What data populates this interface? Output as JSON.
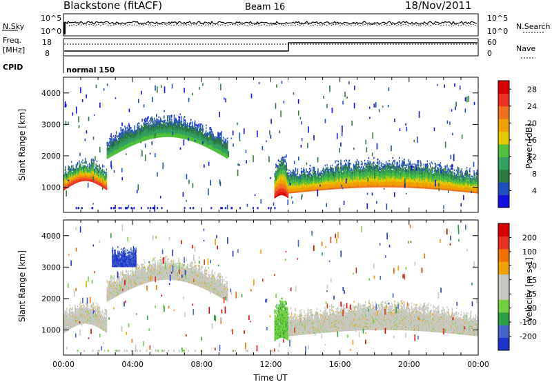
{
  "header": {
    "station": "Blackstone (fitACF)",
    "beam": "Beam 16",
    "date": "18/Nov/2011"
  },
  "top_panels": {
    "nsky_label": "N.Sky",
    "nsky_ticks": [
      "10^5",
      "10^0"
    ],
    "nsearch_label": "N.Search",
    "nsearch_ticks": [
      "10^5",
      "10^0"
    ],
    "freq_label": "Freq.",
    "freq_unit": "[MHz]",
    "freq_ticks": [
      "18",
      "8"
    ],
    "nave_label": "Nave",
    "nave_ticks": [
      "60",
      "0"
    ],
    "cpid_label": "CPID",
    "cpid_value": "normal 150"
  },
  "colors": {
    "power_scale": [
      "#1010e0",
      "#2050c0",
      "#2e7a3e",
      "#33a060",
      "#4fc13a",
      "#e8c800",
      "#f0a000",
      "#f07020",
      "#f03020",
      "#d80000"
    ],
    "velocity_scale": [
      "#1a33cc",
      "#4466cc",
      "#2aa040",
      "#70d040",
      "#c8c8c0",
      "#c8c8c0",
      "#f0a000",
      "#f07000",
      "#e83020",
      "#d80000"
    ]
  },
  "chart_data": [
    {
      "type": "heatmap",
      "name": "power-panel",
      "ylabel": "Slant Range [km]",
      "xlabel": "",
      "yticks": [
        "1000",
        "2000",
        "3000",
        "4000"
      ],
      "ylim": [
        200,
        4500
      ],
      "xlim": [
        0,
        24
      ],
      "colorbar": {
        "label": "Power [dB]",
        "ticks": [
          "4",
          "8",
          "12",
          "16",
          "20",
          "24",
          "28"
        ],
        "range": [
          0,
          30
        ]
      },
      "echo_bands": [
        {
          "t": [
            0,
            2.5
          ],
          "lower_km": [
            900,
            1200
          ],
          "upper_km": [
            1500,
            1800
          ],
          "peak_db": 26
        },
        {
          "t": [
            2.5,
            9.5
          ],
          "lower_km": [
            1900,
            2600
          ],
          "upper_km": [
            2500,
            3200
          ],
          "peak_db": 14
        },
        {
          "t": [
            12.2,
            13.0
          ],
          "lower_km": [
            650,
            750
          ],
          "upper_km": [
            1500,
            2000
          ],
          "peak_db": 28
        },
        {
          "t": [
            13.0,
            24
          ],
          "lower_km": [
            800,
            1000
          ],
          "upper_km": [
            1400,
            1800
          ],
          "peak_db": 22
        }
      ]
    },
    {
      "type": "heatmap",
      "name": "velocity-panel",
      "ylabel": "Slant Range [km]",
      "xlabel": "Time UT",
      "xticks": [
        "00:00",
        "04:00",
        "08:00",
        "12:00",
        "16:00",
        "20:00",
        "00:00"
      ],
      "yticks": [
        "1000",
        "2000",
        "3000",
        "4000"
      ],
      "ylim": [
        200,
        4500
      ],
      "xlim": [
        0,
        24
      ],
      "colorbar": {
        "label": "Velocity [m s-1]",
        "ticks": [
          "200",
          "100",
          "50",
          "15",
          "-15",
          "-50",
          "-100",
          "-200"
        ],
        "range": [
          -250,
          250
        ]
      },
      "echo_bands": [
        {
          "t": [
            0,
            2.5
          ],
          "lower_km": [
            900,
            1200
          ],
          "upper_km": [
            1500,
            1800
          ],
          "velocity_ms": 0
        },
        {
          "t": [
            2.5,
            9.5
          ],
          "lower_km": [
            1900,
            2600
          ],
          "upper_km": [
            2500,
            3200
          ],
          "velocity_ms": 0
        },
        {
          "t": [
            12.2,
            13.0
          ],
          "lower_km": [
            650,
            750
          ],
          "upper_km": [
            1500,
            2000
          ],
          "velocity_ms": 40
        },
        {
          "t": [
            13.0,
            24
          ],
          "lower_km": [
            800,
            1000
          ],
          "upper_km": [
            1400,
            1800
          ],
          "velocity_ms": 0
        },
        {
          "t": [
            2.8,
            4.2
          ],
          "lower_km": [
            3000,
            3000
          ],
          "upper_km": [
            3500,
            3500
          ],
          "velocity_ms": -220
        }
      ]
    }
  ]
}
